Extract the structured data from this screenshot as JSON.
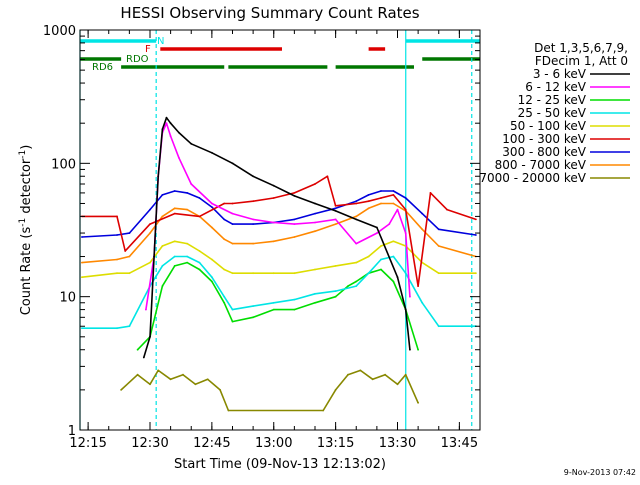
{
  "chart_data": {
    "type": "line",
    "title": "HESSI Observing Summary Count Rates",
    "xlabel": "Start Time (09-Nov-13 12:13:02)",
    "ylabel_main": "Count Rate (s",
    "ylabel_sup1": "-1",
    "ylabel_mid": " detector",
    "ylabel_sup2": "-1",
    "ylabel_end": ")",
    "yscale": "log",
    "xlim": [
      "12:13:02",
      "13:50:00"
    ],
    "ylim": [
      1,
      1000
    ],
    "x_ticks": [
      "12:15",
      "12:30",
      "12:45",
      "13:00",
      "13:15",
      "13:30",
      "13:45"
    ],
    "y_ticks": [
      "1",
      "10",
      "100",
      "1000"
    ],
    "legend_header": [
      "Det 1,3,5,6,7,9,",
      "FDecim 1, Att 0"
    ],
    "legend_position": "right",
    "footer_date": "9-Nov-2013 07:42",
    "flags": [
      {
        "label": "N",
        "color": "#00e5e5",
        "segments": [
          [
            "12:13:02",
            "12:31:30"
          ],
          [
            "13:32:00",
            "13:50:00"
          ]
        ]
      },
      {
        "label": "F",
        "color": "#dd0000",
        "segments": [
          [
            "12:32:30",
            "13:02:00"
          ],
          [
            "13:23:00",
            "13:27:00"
          ]
        ]
      },
      {
        "label": "RDO",
        "color": "#007700",
        "segments": [
          [
            "12:13:02",
            "12:23:00"
          ],
          [
            "13:36:00",
            "13:50:00"
          ]
        ]
      },
      {
        "label": "RD6",
        "color": "#007700",
        "segments": [
          [
            "12:23:00",
            "12:48:00"
          ],
          [
            "12:49:00",
            "13:13:00"
          ],
          [
            "13:15:00",
            "13:34:00"
          ]
        ]
      }
    ],
    "vlines": [
      {
        "x": "12:13:02",
        "color": "#00e5e5",
        "style": "solid"
      },
      {
        "x": "12:31:30",
        "color": "#00e5e5",
        "style": "dashed"
      },
      {
        "x": "13:32:00",
        "color": "#00e5e5",
        "style": "solid"
      },
      {
        "x": "13:48:00",
        "color": "#00e5e5",
        "style": "dashed"
      }
    ],
    "series": [
      {
        "name": "3 - 6 keV",
        "color": "#000000",
        "x": [
          "12:28:30",
          "12:30:00",
          "12:31:00",
          "12:32:00",
          "12:33:00",
          "12:34:00",
          "12:35:00",
          "12:37:00",
          "12:40:00",
          "12:45:00",
          "12:50:00",
          "12:55:00",
          "13:00:00",
          "13:05:00",
          "13:10:00",
          "13:15:00",
          "13:20:00",
          "13:25:00",
          "13:30:00",
          "13:32:00",
          "13:33:00"
        ],
        "y": [
          3.5,
          5,
          20,
          80,
          180,
          220,
          200,
          170,
          140,
          120,
          100,
          80,
          68,
          57,
          50,
          44,
          38,
          33,
          14,
          8,
          4
        ]
      },
      {
        "name": "6 - 12 keV",
        "color": "#ff00ff",
        "x": [
          "12:29:00",
          "12:31:00",
          "12:32:00",
          "12:33:00",
          "12:34:00",
          "12:35:00",
          "12:37:00",
          "12:40:00",
          "12:45:00",
          "12:50:00",
          "12:55:00",
          "13:00:00",
          "13:05:00",
          "13:10:00",
          "13:15:00",
          "13:20:00",
          "13:25:00",
          "13:28:00",
          "13:30:00",
          "13:32:00",
          "13:33:00"
        ],
        "y": [
          8,
          20,
          80,
          170,
          200,
          160,
          110,
          70,
          50,
          42,
          38,
          36,
          35,
          36,
          38,
          25,
          30,
          35,
          45,
          30,
          10
        ]
      },
      {
        "name": "12 - 25 keV",
        "color": "#00dd00",
        "x": [
          "12:27:00",
          "12:30:00",
          "12:33:00",
          "12:36:00",
          "12:39:00",
          "12:42:00",
          "12:45:00",
          "12:48:00",
          "12:50:00",
          "12:55:00",
          "13:00:00",
          "13:05:00",
          "13:10:00",
          "13:15:00",
          "13:18:00",
          "13:20:00",
          "13:23:00",
          "13:26:00",
          "13:29:00",
          "13:32:00",
          "13:35:00"
        ],
        "y": [
          4,
          5,
          12,
          17,
          18,
          16,
          13,
          9,
          6.5,
          7,
          8,
          8,
          9,
          10,
          12,
          13,
          15,
          16,
          13,
          8,
          4
        ]
      },
      {
        "name": "25 - 50 keV",
        "color": "#00e5e5",
        "x": [
          "12:13:30",
          "12:22:00",
          "12:25:00",
          "12:30:00",
          "12:33:00",
          "12:36:00",
          "12:39:00",
          "12:42:00",
          "12:45:00",
          "12:48:00",
          "12:50:00",
          "12:55:00",
          "13:00:00",
          "13:05:00",
          "13:10:00",
          "13:15:00",
          "13:20:00",
          "13:23:00",
          "13:26:00",
          "13:29:00",
          "13:32:00",
          "13:36:00",
          "13:40:00",
          "13:49:00"
        ],
        "y": [
          5.8,
          5.8,
          6,
          12,
          17,
          20,
          20,
          18,
          14,
          10,
          8,
          8.5,
          9,
          9.5,
          10.5,
          11,
          12,
          15,
          19,
          20,
          15,
          9,
          6,
          6
        ]
      },
      {
        "name": "50 - 100 keV",
        "color": "#dddd00",
        "x": [
          "12:13:30",
          "12:22:00",
          "12:25:00",
          "12:30:00",
          "12:33:00",
          "12:36:00",
          "12:39:00",
          "12:42:00",
          "12:45:00",
          "12:48:00",
          "12:50:00",
          "12:55:00",
          "13:00:00",
          "13:05:00",
          "13:10:00",
          "13:15:00",
          "13:20:00",
          "13:23:00",
          "13:26:00",
          "13:29:00",
          "13:32:00",
          "13:36:00",
          "13:40:00",
          "13:49:00"
        ],
        "y": [
          14,
          15,
          15,
          18,
          24,
          26,
          25,
          22,
          19,
          16,
          15,
          15,
          15,
          15,
          16,
          17,
          18,
          20,
          24,
          26,
          24,
          18,
          15,
          15
        ]
      },
      {
        "name": "100 - 300 keV",
        "color": "#dd0000",
        "x": [
          "12:13:30",
          "12:22:00",
          "12:24:00",
          "12:30:00",
          "12:36:00",
          "12:42:00",
          "12:48:00",
          "12:50:00",
          "12:55:00",
          "13:00:00",
          "13:05:00",
          "13:10:00",
          "13:13:00",
          "13:15:00",
          "13:20:00",
          "13:23:00",
          "13:26:00",
          "13:29:00",
          "13:32:00",
          "13:35:00",
          "13:38:00",
          "13:42:00",
          "13:49:00"
        ],
        "y": [
          40,
          40,
          22,
          35,
          42,
          40,
          50,
          50,
          52,
          55,
          60,
          70,
          80,
          48,
          50,
          52,
          55,
          58,
          45,
          12,
          60,
          45,
          38
        ]
      },
      {
        "name": "300 - 800 keV",
        "color": "#0000dd",
        "x": [
          "12:13:30",
          "12:22:00",
          "12:25:00",
          "12:30:00",
          "12:33:00",
          "12:36:00",
          "12:39:00",
          "12:42:00",
          "12:45:00",
          "12:48:00",
          "12:50:00",
          "12:55:00",
          "13:00:00",
          "13:05:00",
          "13:10:00",
          "13:15:00",
          "13:20:00",
          "13:23:00",
          "13:26:00",
          "13:29:00",
          "13:32:00",
          "13:36:00",
          "13:40:00",
          "13:49:00"
        ],
        "y": [
          28,
          29,
          30,
          45,
          58,
          62,
          60,
          55,
          47,
          38,
          35,
          35,
          36,
          38,
          42,
          46,
          52,
          58,
          62,
          62,
          55,
          42,
          32,
          29
        ]
      },
      {
        "name": "800 - 7000 keV",
        "color": "#ff8800",
        "x": [
          "12:13:30",
          "12:22:00",
          "12:25:00",
          "12:30:00",
          "12:33:00",
          "12:36:00",
          "12:39:00",
          "12:42:00",
          "12:45:00",
          "12:48:00",
          "12:50:00",
          "12:55:00",
          "13:00:00",
          "13:05:00",
          "13:10:00",
          "13:15:00",
          "13:20:00",
          "13:23:00",
          "13:26:00",
          "13:29:00",
          "13:32:00",
          "13:36:00",
          "13:40:00",
          "13:49:00"
        ],
        "y": [
          18,
          19,
          20,
          30,
          40,
          46,
          45,
          40,
          33,
          27,
          25,
          25,
          26,
          28,
          31,
          35,
          40,
          46,
          50,
          50,
          44,
          32,
          24,
          20
        ]
      },
      {
        "name": "7000 - 20000 keV",
        "color": "#888800",
        "x": [
          "12:23:00",
          "12:27:00",
          "12:30:00",
          "12:32:00",
          "12:35:00",
          "12:38:00",
          "12:41:00",
          "12:44:00",
          "12:47:00",
          "12:49:00",
          "13:12:00",
          "13:15:00",
          "13:18:00",
          "13:21:00",
          "13:24:00",
          "13:27:00",
          "13:30:00",
          "13:32:00",
          "13:35:00"
        ],
        "y": [
          2,
          2.6,
          2.2,
          2.8,
          2.4,
          2.6,
          2.2,
          2.4,
          2,
          1.4,
          1.4,
          2,
          2.6,
          2.8,
          2.4,
          2.6,
          2.2,
          2.6,
          1.6
        ]
      }
    ]
  }
}
